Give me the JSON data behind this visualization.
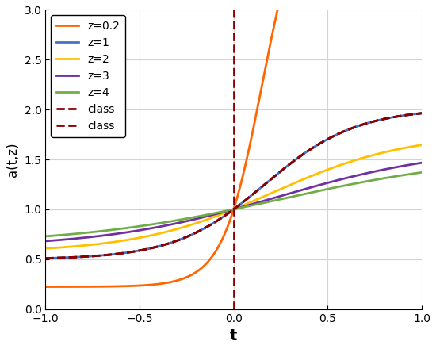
{
  "z_values": [
    0.2,
    1,
    2,
    3,
    4
  ],
  "z_colors": [
    "#FF6600",
    "#4472C4",
    "#FFC000",
    "#7030A0",
    "#70AD47"
  ],
  "z_labels": [
    "z=0.2",
    "z=1",
    "z=2",
    "z=3",
    "z=4"
  ],
  "class_color": "#8B0000",
  "vline_color": "#8B0000",
  "t_min": -1.0,
  "t_max": 1.0,
  "t_points": 2000,
  "ylim": [
    0,
    3
  ],
  "xlabel": "t",
  "ylabel": "a(t,z)",
  "background_color": "#ffffff",
  "grid": true,
  "linewidth": 2.0,
  "A_amp": 0.72,
  "A_exp": -0.56,
  "B_slope": 3.5,
  "B_exp": -0.85
}
